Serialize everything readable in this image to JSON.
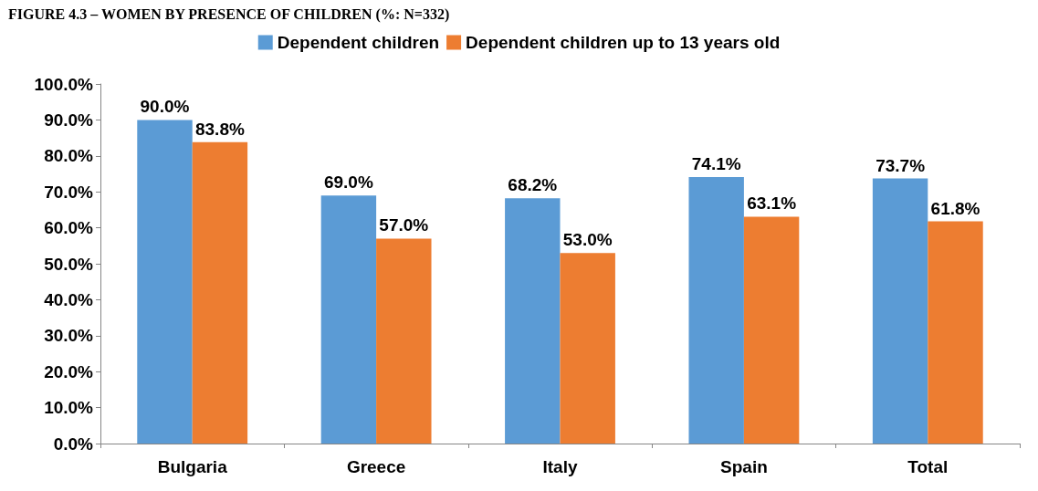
{
  "chart_data": {
    "type": "bar",
    "title": "FIGURE 4.3 – WOMEN BY PRESENCE OF CHILDREN (%: N=332)",
    "categories": [
      "Bulgaria",
      "Greece",
      "Italy",
      "Spain",
      "Total"
    ],
    "series": [
      {
        "name": "Dependent children",
        "color": "#5b9bd5",
        "values": [
          90.0,
          69.0,
          68.2,
          74.1,
          73.7
        ],
        "value_labels": [
          "90.0%",
          "69.0%",
          "68.2%",
          "74.1%",
          "73.7%"
        ]
      },
      {
        "name": "Dependent children up to 13 years old",
        "color": "#ed7d31",
        "values": [
          83.8,
          57.0,
          53.0,
          63.1,
          61.8
        ],
        "value_labels": [
          "83.8%",
          "57.0%",
          "53.0%",
          "63.1%",
          "61.8%"
        ]
      }
    ],
    "ylim": [
      0,
      100
    ],
    "yticks": [
      {
        "value": 0,
        "label": "0.0%"
      },
      {
        "value": 10,
        "label": "10.0%"
      },
      {
        "value": 20,
        "label": "20.0%"
      },
      {
        "value": 30,
        "label": "30.0%"
      },
      {
        "value": 40,
        "label": "40.0%"
      },
      {
        "value": 50,
        "label": "50.0%"
      },
      {
        "value": 60,
        "label": "60.0%"
      },
      {
        "value": 70,
        "label": "70.0%"
      },
      {
        "value": 80,
        "label": "80.0%"
      },
      {
        "value": 90,
        "label": "90.0%"
      },
      {
        "value": 100,
        "label": "100.0%"
      }
    ],
    "legend": "top",
    "grid": false
  }
}
